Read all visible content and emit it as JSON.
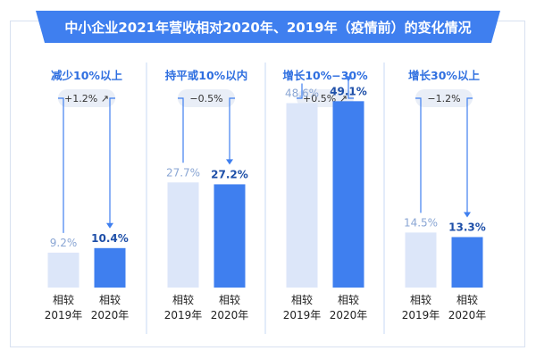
{
  "chart_data": {
    "type": "bar",
    "title": "中小企业2021年营收相对2020年、2019年（疫情前）的变化情况",
    "series_names": [
      "相较2019年",
      "相较2020年"
    ],
    "ylim": [
      0,
      55
    ],
    "grid": false,
    "colors": {
      "banner": "#3f7fef",
      "bar_2019": "#dce6f9",
      "bar_2020": "#3f7fef",
      "category_label": "#2f6fe0",
      "label_2019": "#8aa6d4",
      "label_2020": "#1e4fa8",
      "change_bg": "#e9eef7",
      "divider": "#c7d8f5"
    },
    "groups": [
      {
        "category": "减少10%以上",
        "change": "+1.2%",
        "arrow": "↗",
        "bars": [
          {
            "label": [
              "相较",
              "2019年"
            ],
            "value": 9.2,
            "text": "9.2%"
          },
          {
            "label": [
              "相较",
              "2020年"
            ],
            "value": 10.4,
            "text": "10.4%"
          }
        ]
      },
      {
        "category": "持平或10%以内",
        "change": "−0.5%",
        "arrow": "",
        "bars": [
          {
            "label": [
              "相较",
              "2019年"
            ],
            "value": 27.7,
            "text": "27.7%"
          },
          {
            "label": [
              "相较",
              "2020年"
            ],
            "value": 27.2,
            "text": "27.2%"
          }
        ]
      },
      {
        "category": "增长10%−30%",
        "change": "+0.5%",
        "arrow": "↗",
        "bars": [
          {
            "label": [
              "相较",
              "2019年"
            ],
            "value": 48.6,
            "text": "48.6%"
          },
          {
            "label": [
              "相较",
              "2020年"
            ],
            "value": 49.1,
            "text": "49.1%"
          }
        ]
      },
      {
        "category": "增长30%以上",
        "change": "−1.2%",
        "arrow": "",
        "bars": [
          {
            "label": [
              "相较",
              "2019年"
            ],
            "value": 14.5,
            "text": "14.5%"
          },
          {
            "label": [
              "相较",
              "2020年"
            ],
            "value": 13.3,
            "text": "13.3%"
          }
        ]
      }
    ]
  }
}
